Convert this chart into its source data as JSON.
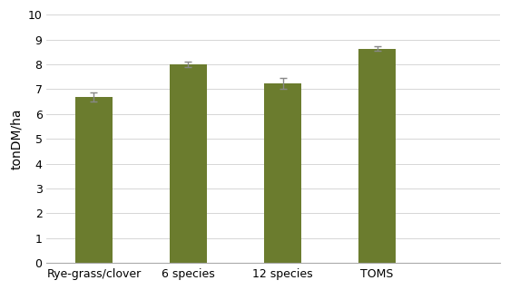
{
  "categories": [
    "Rye-grass/clover",
    "6 species",
    "12 species",
    "TOMS"
  ],
  "values": [
    6.7,
    8.0,
    7.22,
    8.63
  ],
  "errors": [
    0.18,
    0.12,
    0.22,
    0.1
  ],
  "bar_color": "#6b7c2e",
  "ylabel": "tonDM/ha",
  "ylim": [
    0,
    10
  ],
  "yticks": [
    0,
    1,
    2,
    3,
    4,
    5,
    6,
    7,
    8,
    9,
    10
  ],
  "bar_width": 0.4,
  "error_capsize": 3,
  "error_color": "#888888",
  "error_linewidth": 1.0,
  "background_color": "#ffffff",
  "ylabel_fontsize": 10,
  "tick_fontsize": 9,
  "xlabel_fontsize": 9,
  "figsize": [
    5.62,
    3.2
  ],
  "dpi": 100
}
